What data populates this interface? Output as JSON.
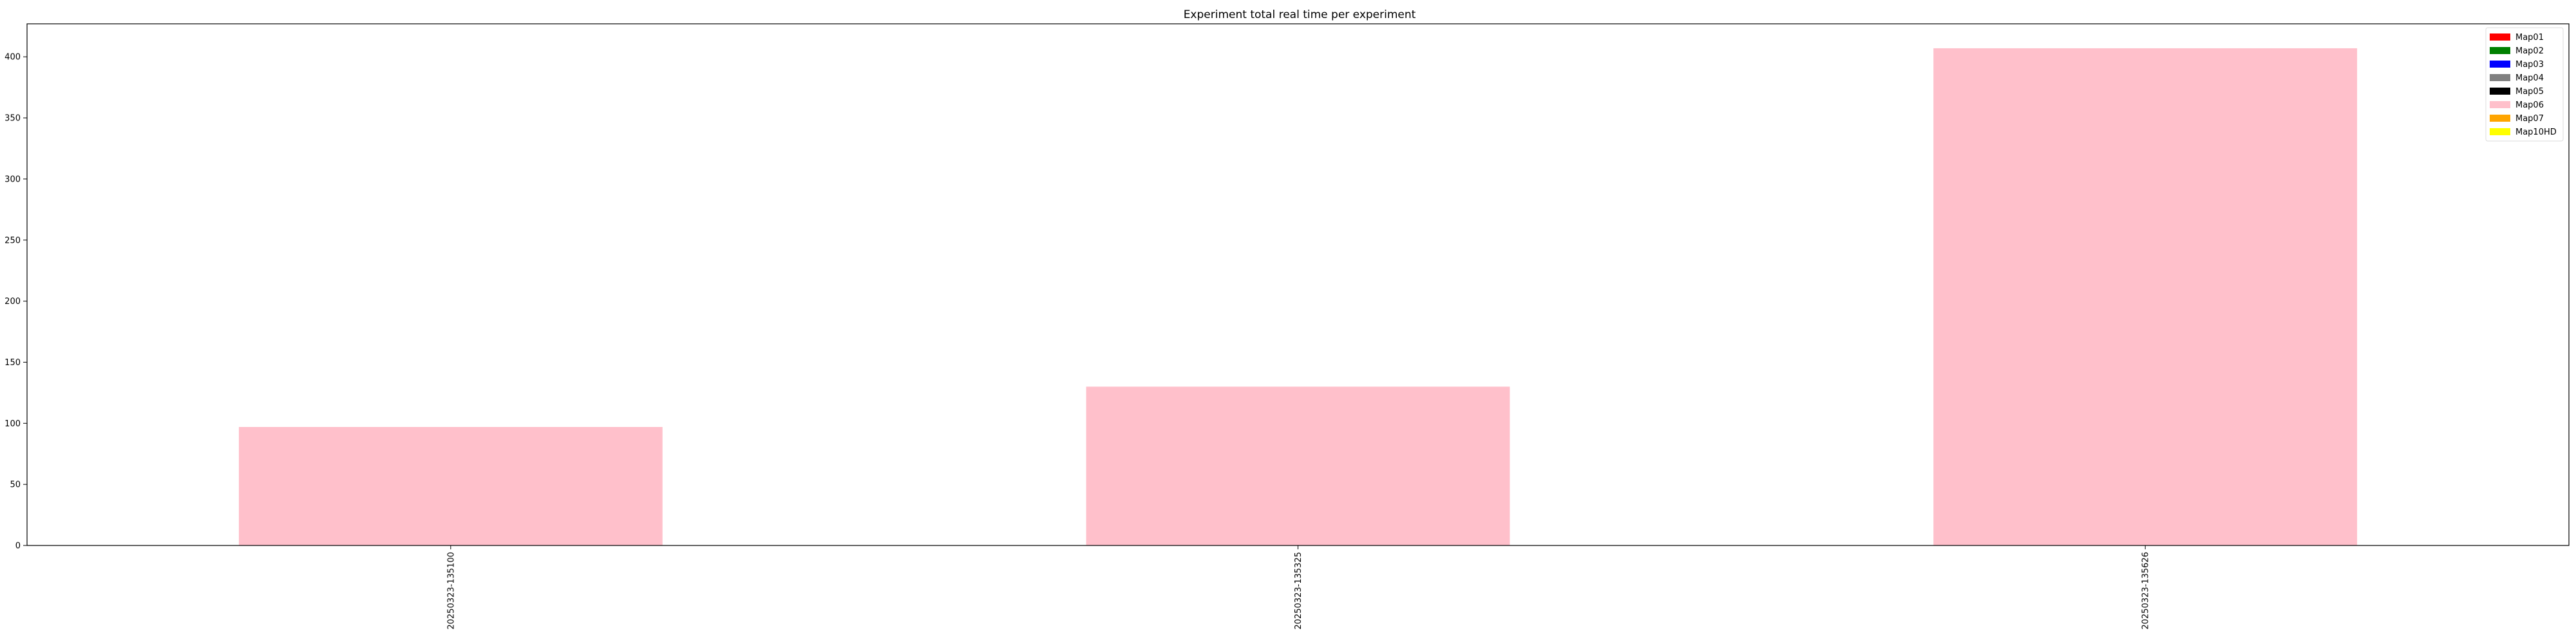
{
  "chart_data": {
    "type": "bar",
    "title": "Experiment total real time per experiment",
    "xlabel": "",
    "ylabel": "",
    "categories": [
      "20250323-135100",
      "20250323-135325",
      "20250323-135626"
    ],
    "series": [
      {
        "name": "Map01",
        "color": "#ff0000",
        "values": [
          0,
          0,
          0
        ]
      },
      {
        "name": "Map02",
        "color": "#008000",
        "values": [
          0,
          0,
          0
        ]
      },
      {
        "name": "Map03",
        "color": "#0000ff",
        "values": [
          0,
          0,
          0
        ]
      },
      {
        "name": "Map04",
        "color": "#808080",
        "values": [
          0,
          0,
          0
        ]
      },
      {
        "name": "Map05",
        "color": "#000000",
        "values": [
          0,
          0,
          0
        ]
      },
      {
        "name": "Map06",
        "color": "#ffc0cb",
        "values": [
          97,
          130,
          407
        ]
      },
      {
        "name": "Map07",
        "color": "#ffa500",
        "values": [
          0,
          0,
          0
        ]
      },
      {
        "name": "Map10HD",
        "color": "#ffff00",
        "values": [
          0,
          0,
          0
        ]
      }
    ],
    "yticks": [
      0,
      50,
      100,
      150,
      200,
      250,
      300,
      350,
      400
    ],
    "ylim": [
      0,
      427
    ],
    "grid": false,
    "stacked": true,
    "legend_position": "top-right"
  }
}
